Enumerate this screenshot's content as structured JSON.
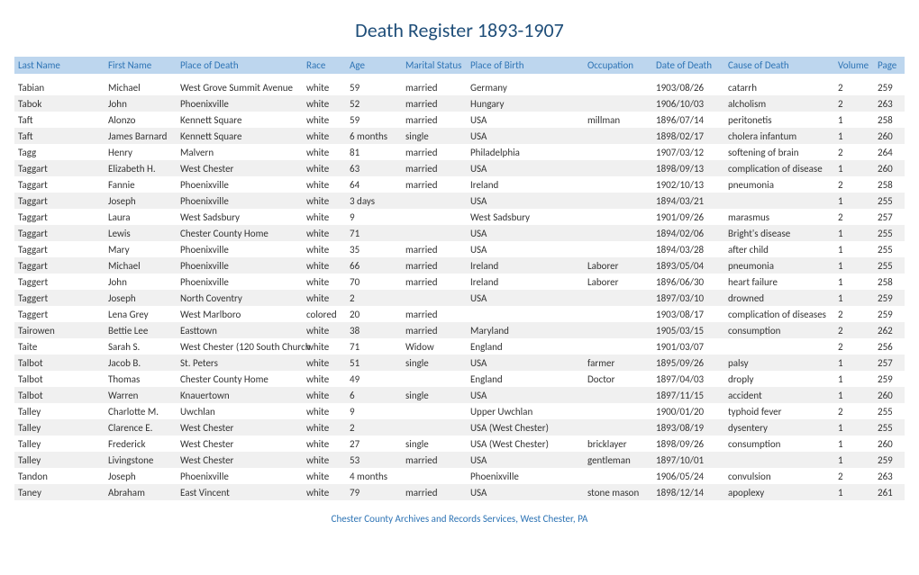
{
  "title": "Death Register 1893-1907",
  "title_color": "#1f4e79",
  "title_fontsize": 22,
  "header_bg": "#bdd6ee",
  "header_color": "#2e74b5",
  "header_fontsize": 11,
  "body_fontsize": 11,
  "body_color": "#333333",
  "alt_row_bg": "#f0f0f0",
  "footer": "Chester County Archives and Records Services, West Chester, PA",
  "footer_color": "#2e74b5",
  "footer_fontsize": 11,
  "columns": [
    {
      "label": "Last Name",
      "width": 100
    },
    {
      "label": "First Name",
      "width": 80
    },
    {
      "label": "Place of Death",
      "width": 140
    },
    {
      "label": "Race",
      "width": 48
    },
    {
      "label": "Age",
      "width": 62
    },
    {
      "label": "Marital Status",
      "width": 72
    },
    {
      "label": "Place of Birth",
      "width": 130
    },
    {
      "label": "Occupation",
      "width": 76
    },
    {
      "label": "Date of Death",
      "width": 80
    },
    {
      "label": "Cause of Death",
      "width": 122
    },
    {
      "label": "Volume",
      "width": 44
    },
    {
      "label": "Page",
      "width": 34
    }
  ],
  "rows": [
    [
      "Tabian",
      "Michael",
      "West Grove Summit Avenue",
      "white",
      "59",
      "married",
      "Germany",
      "",
      "1903/08/26",
      "catarrh",
      "2",
      "259"
    ],
    [
      "Tabok",
      "John",
      "Phoenixville",
      "white",
      "52",
      "married",
      "Hungary",
      "",
      "1906/10/03",
      "alcholism",
      "2",
      "263"
    ],
    [
      "Taft",
      "Alonzo",
      "Kennett Square",
      "white",
      "59",
      "married",
      "USA",
      "millman",
      "1896/07/14",
      "peritonetis",
      "1",
      "258"
    ],
    [
      "Taft",
      "James Barnard",
      "Kennett Square",
      "white",
      "6 months",
      "single",
      "USA",
      "",
      "1898/02/17",
      "cholera infantum",
      "1",
      "260"
    ],
    [
      "Tagg",
      "Henry",
      "Malvern",
      "white",
      "81",
      "married",
      "Philadelphia",
      "",
      "1907/03/12",
      "softening of brain",
      "2",
      "264"
    ],
    [
      "Taggart",
      "Elizabeth H.",
      "West Chester",
      "white",
      "63",
      "married",
      "USA",
      "",
      "1898/09/13",
      "complication of disease",
      "1",
      "260"
    ],
    [
      "Taggart",
      "Fannie",
      "Phoenixville",
      "white",
      "64",
      "married",
      "Ireland",
      "",
      "1902/10/13",
      "pneumonia",
      "2",
      "258"
    ],
    [
      "Taggart",
      "Joseph",
      "Phoenixville",
      "white",
      "3 days",
      "",
      "USA",
      "",
      "1894/03/21",
      "",
      "1",
      "255"
    ],
    [
      "Taggart",
      "Laura",
      "West Sadsbury",
      "white",
      "9",
      "",
      "West Sadsbury",
      "",
      "1901/09/26",
      "marasmus",
      "2",
      "257"
    ],
    [
      "Taggart",
      "Lewis",
      "Chester County Home",
      "white",
      "71",
      "",
      "USA",
      "",
      "1894/02/06",
      "Bright's disease",
      "1",
      "255"
    ],
    [
      "Taggart",
      "Mary",
      "Phoenixville",
      "white",
      "35",
      "married",
      "USA",
      "",
      "1894/03/28",
      "after child",
      "1",
      "255"
    ],
    [
      "Taggart",
      "Michael",
      "Phoenixville",
      "white",
      "66",
      "married",
      "Ireland",
      "Laborer",
      "1893/05/04",
      "pneumonia",
      "1",
      "255"
    ],
    [
      "Taggert",
      "John",
      "Phoenixville",
      "white",
      "70",
      "married",
      "Ireland",
      "Laborer",
      "1896/06/30",
      "heart failure",
      "1",
      "258"
    ],
    [
      "Taggert",
      "Joseph",
      "North Coventry",
      "white",
      "2",
      "",
      "USA",
      "",
      "1897/03/10",
      "drowned",
      "1",
      "259"
    ],
    [
      "Taggert",
      "Lena Grey",
      "West Marlboro",
      "colored",
      "20",
      "married",
      "",
      "",
      "1903/08/17",
      "complication of diseases",
      "2",
      "259"
    ],
    [
      "Tairowen",
      "Bettie Lee",
      "Easttown",
      "white",
      "38",
      "married",
      "Maryland",
      "",
      "1905/03/15",
      "consumption",
      "2",
      "262"
    ],
    [
      "Taite",
      "Sarah S.",
      "West Chester (120 South Church",
      "white",
      "71",
      "Widow",
      "England",
      "",
      "1901/03/07",
      "",
      "2",
      "256"
    ],
    [
      "Talbot",
      "Jacob B.",
      "St. Peters",
      "white",
      "51",
      "single",
      "USA",
      "farmer",
      "1895/09/26",
      "palsy",
      "1",
      "257"
    ],
    [
      "Talbot",
      "Thomas",
      "Chester County Home",
      "white",
      "49",
      "",
      "England",
      "Doctor",
      "1897/04/03",
      "droply",
      "1",
      "259"
    ],
    [
      "Talbot",
      "Warren",
      "Knauertown",
      "white",
      "6",
      "single",
      "USA",
      "",
      "1897/11/15",
      "accident",
      "1",
      "260"
    ],
    [
      "Talley",
      "Charlotte M.",
      "Uwchlan",
      "white",
      "9",
      "",
      "Upper Uwchlan",
      "",
      "1900/01/20",
      "typhoid fever",
      "2",
      "255"
    ],
    [
      "Talley",
      "Clarence E.",
      "West Chester",
      "white",
      "2",
      "",
      "USA (West Chester)",
      "",
      "1893/08/19",
      "dysentery",
      "1",
      "255"
    ],
    [
      "Talley",
      "Frederick",
      "West Chester",
      "white",
      "27",
      "single",
      "USA (West Chester)",
      "bricklayer",
      "1898/09/26",
      "consumption",
      "1",
      "260"
    ],
    [
      "Talley",
      "Livingstone",
      "West Chester",
      "white",
      "53",
      "married",
      "USA",
      "gentleman",
      "1897/10/01",
      "",
      "1",
      "259"
    ],
    [
      "Tandon",
      "Joseph",
      "Phoenixville",
      "white",
      "4 months",
      "",
      "Phoenixville",
      "",
      "1906/05/24",
      "convulsion",
      "2",
      "263"
    ],
    [
      "Taney",
      "Abraham",
      "East Vincent",
      "white",
      "79",
      "married",
      "USA",
      "stone mason",
      "1898/12/14",
      "apoplexy",
      "1",
      "261"
    ]
  ]
}
